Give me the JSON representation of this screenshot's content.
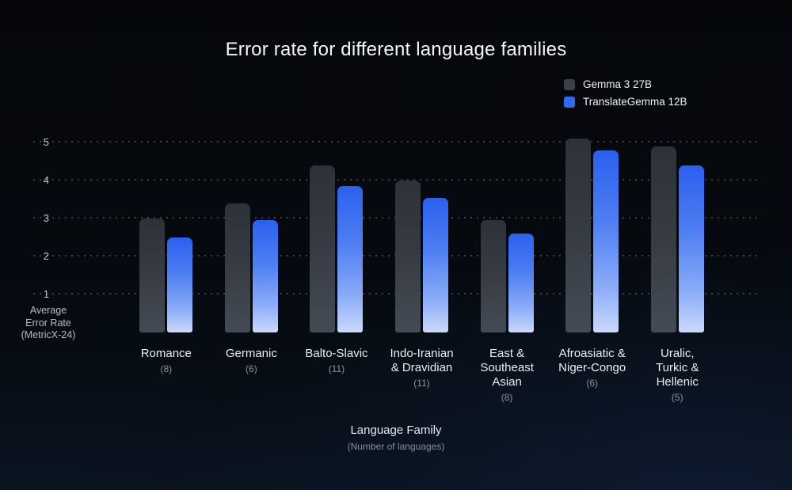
{
  "title": "Error rate for different language families",
  "y_axis": {
    "ticks": [
      1,
      2,
      3,
      4,
      5
    ],
    "label_lines": [
      "Average",
      "Error Rate",
      "(MetricX-24)"
    ]
  },
  "x_axis": {
    "title": "Language Family",
    "subtitle": "(Number of languages)"
  },
  "chart_data": {
    "type": "bar",
    "title": "Error rate for different language families",
    "categories": [
      "Romance",
      "Germanic",
      "Balto-Slavic",
      "Indo-Iranian & Dravidian",
      "East & Southeast Asian",
      "Afroasiatic & Niger-Congo",
      "Uralic, Turkic & Hellenic"
    ],
    "category_label_lines": [
      [
        "Romance"
      ],
      [
        "Germanic"
      ],
      [
        "Balto-Slavic"
      ],
      [
        "Indo-Iranian",
        "& Dravidian"
      ],
      [
        "East &",
        "Southeast",
        "Asian"
      ],
      [
        "Afroasiatic &",
        "Niger-Congo"
      ],
      [
        "Uralic,",
        "Turkic &",
        "Hellenic"
      ]
    ],
    "counts": [
      8,
      6,
      11,
      11,
      8,
      6,
      5
    ],
    "series": [
      {
        "name": "Gemma 3 27B",
        "color": "#3c4149",
        "values": [
          3.0,
          3.4,
          4.4,
          4.0,
          2.95,
          5.1,
          4.9
        ]
      },
      {
        "name": "TranslateGemma 12B",
        "color": "#2e6bf0",
        "values": [
          2.5,
          2.95,
          3.85,
          3.55,
          2.6,
          4.8,
          4.4
        ]
      }
    ],
    "xlabel": "Language Family (Number of languages)",
    "ylabel": "Average Error Rate (MetricX-24)",
    "ylim": [
      0,
      5.2
    ],
    "grid": "horizontal-dotted",
    "legend_position": "top-right"
  }
}
